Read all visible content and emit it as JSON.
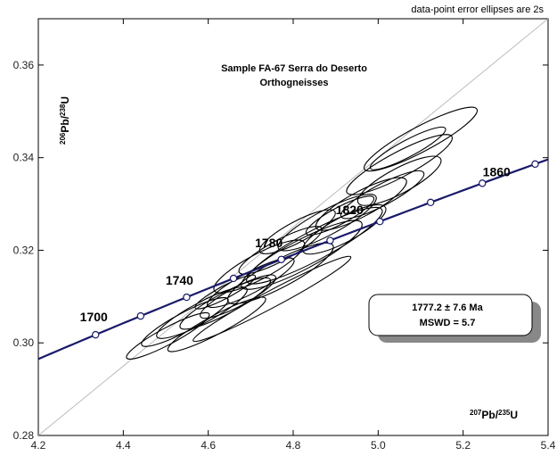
{
  "chart_data": {
    "type": "scatter",
    "subtype": "concordia-diagram",
    "note": "data-point error ellipses are 2s",
    "title_line1": "Sample FA-67 Serra do Deserto",
    "title_line2": "Orthogneisses",
    "xlabel": {
      "sup": "207",
      "base": "Pb/",
      "sup2": "235",
      "end": "U"
    },
    "ylabel": {
      "sup": "206",
      "base": "Pb/",
      "sup2": "238",
      "end": "U"
    },
    "xlim": [
      4.2,
      5.4
    ],
    "ylim": [
      0.28,
      0.37
    ],
    "xticks": [
      4.2,
      4.4,
      4.6,
      4.8,
      5.0,
      5.2,
      5.4
    ],
    "xtick_labels": [
      "4.2",
      "4.4",
      "4.6",
      "4.8",
      "5.0",
      "5.2",
      "5.4"
    ],
    "yticks": [
      0.28,
      0.3,
      0.32,
      0.34,
      0.36
    ],
    "ytick_labels": [
      "0.28",
      "0.30",
      "0.32",
      "0.34",
      "0.36"
    ],
    "concordia_ages": [
      1700,
      1720,
      1740,
      1760,
      1780,
      1800,
      1820,
      1840,
      1860,
      1880
    ],
    "concordia_age_labels": [
      {
        "age": 1700,
        "text": "1700"
      },
      {
        "age": 1740,
        "text": "1740"
      },
      {
        "age": 1780,
        "text": "1780"
      },
      {
        "age": 1820,
        "text": "1820"
      },
      {
        "age": 1860,
        "text": "1860"
      }
    ],
    "result_line1": "1777.2 ± 7.6    Ma",
    "result_line2": "MSWD = 5.7",
    "ellipses": [
      {
        "x": 4.505,
        "y": 0.3015,
        "dx": 0.11,
        "dy": 0.004
      },
      {
        "x": 4.545,
        "y": 0.3045,
        "dx": 0.115,
        "dy": 0.0045
      },
      {
        "x": 4.585,
        "y": 0.3065,
        "dx": 0.12,
        "dy": 0.005
      },
      {
        "x": 4.64,
        "y": 0.3085,
        "dx": 0.12,
        "dy": 0.005
      },
      {
        "x": 4.67,
        "y": 0.31,
        "dx": 0.1,
        "dy": 0.0045
      },
      {
        "x": 4.64,
        "y": 0.311,
        "dx": 0.08,
        "dy": 0.003
      },
      {
        "x": 4.7,
        "y": 0.313,
        "dx": 0.115,
        "dy": 0.005
      },
      {
        "x": 4.75,
        "y": 0.3095,
        "dx": 0.21,
        "dy": 0.004
      },
      {
        "x": 4.72,
        "y": 0.3165,
        "dx": 0.12,
        "dy": 0.006
      },
      {
        "x": 4.77,
        "y": 0.315,
        "dx": 0.14,
        "dy": 0.0065
      },
      {
        "x": 4.77,
        "y": 0.32,
        "dx": 0.11,
        "dy": 0.005
      },
      {
        "x": 4.82,
        "y": 0.319,
        "dx": 0.16,
        "dy": 0.007
      },
      {
        "x": 4.81,
        "y": 0.324,
        "dx": 0.1,
        "dy": 0.005
      },
      {
        "x": 4.85,
        "y": 0.321,
        "dx": 0.18,
        "dy": 0.007
      },
      {
        "x": 4.88,
        "y": 0.326,
        "dx": 0.13,
        "dy": 0.006
      },
      {
        "x": 4.91,
        "y": 0.3275,
        "dx": 0.09,
        "dy": 0.004
      },
      {
        "x": 4.92,
        "y": 0.3245,
        "dx": 0.11,
        "dy": 0.006
      },
      {
        "x": 4.96,
        "y": 0.33,
        "dx": 0.12,
        "dy": 0.006
      },
      {
        "x": 5.01,
        "y": 0.332,
        "dx": 0.11,
        "dy": 0.005
      },
      {
        "x": 5.05,
        "y": 0.335,
        "dx": 0.11,
        "dy": 0.006
      },
      {
        "x": 5.05,
        "y": 0.3385,
        "dx": 0.14,
        "dy": 0.006
      },
      {
        "x": 5.07,
        "y": 0.342,
        "dx": 0.1,
        "dy": 0.004
      },
      {
        "x": 5.1,
        "y": 0.344,
        "dx": 0.15,
        "dy": 0.006
      },
      {
        "x": 4.62,
        "y": 0.304,
        "dx": 0.13,
        "dy": 0.0045
      }
    ]
  }
}
